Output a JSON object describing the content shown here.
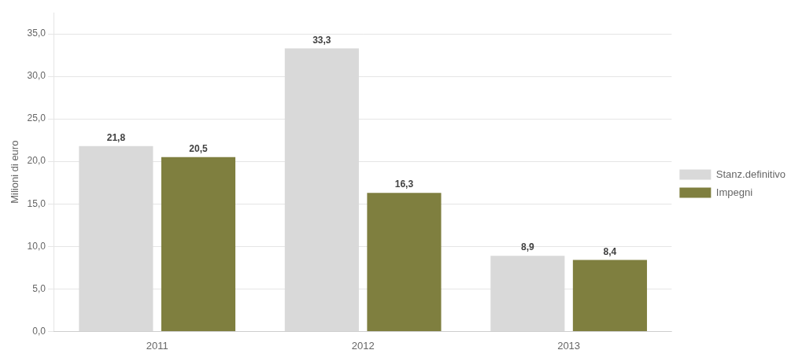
{
  "chart_data": {
    "type": "bar",
    "categories": [
      "2011",
      "2012",
      "2013"
    ],
    "series": [
      {
        "name": "Stanz.definitivo",
        "color": "#d9d9d9",
        "values": [
          21.8,
          33.3,
          8.9
        ],
        "value_labels": [
          "21,8",
          "33,3",
          "8,9"
        ]
      },
      {
        "name": "Impegni",
        "color": "#7f7f3f",
        "values": [
          20.5,
          16.3,
          8.4
        ],
        "value_labels": [
          "20,5",
          "16,3",
          "8,4"
        ]
      }
    ],
    "ylabel": "Milioni di euro",
    "ylim": [
      0,
      37.5
    ],
    "yticks": [
      {
        "value": 0,
        "label": "0,0"
      },
      {
        "value": 5,
        "label": "5,0"
      },
      {
        "value": 10,
        "label": "10,0"
      },
      {
        "value": 15,
        "label": "15,0"
      },
      {
        "value": 20,
        "label": "20,0"
      },
      {
        "value": 25,
        "label": "25,0"
      },
      {
        "value": 30,
        "label": "30,0"
      },
      {
        "value": 35,
        "label": "35,0"
      }
    ],
    "grid": true,
    "legend": "right",
    "data_labels": true
  }
}
